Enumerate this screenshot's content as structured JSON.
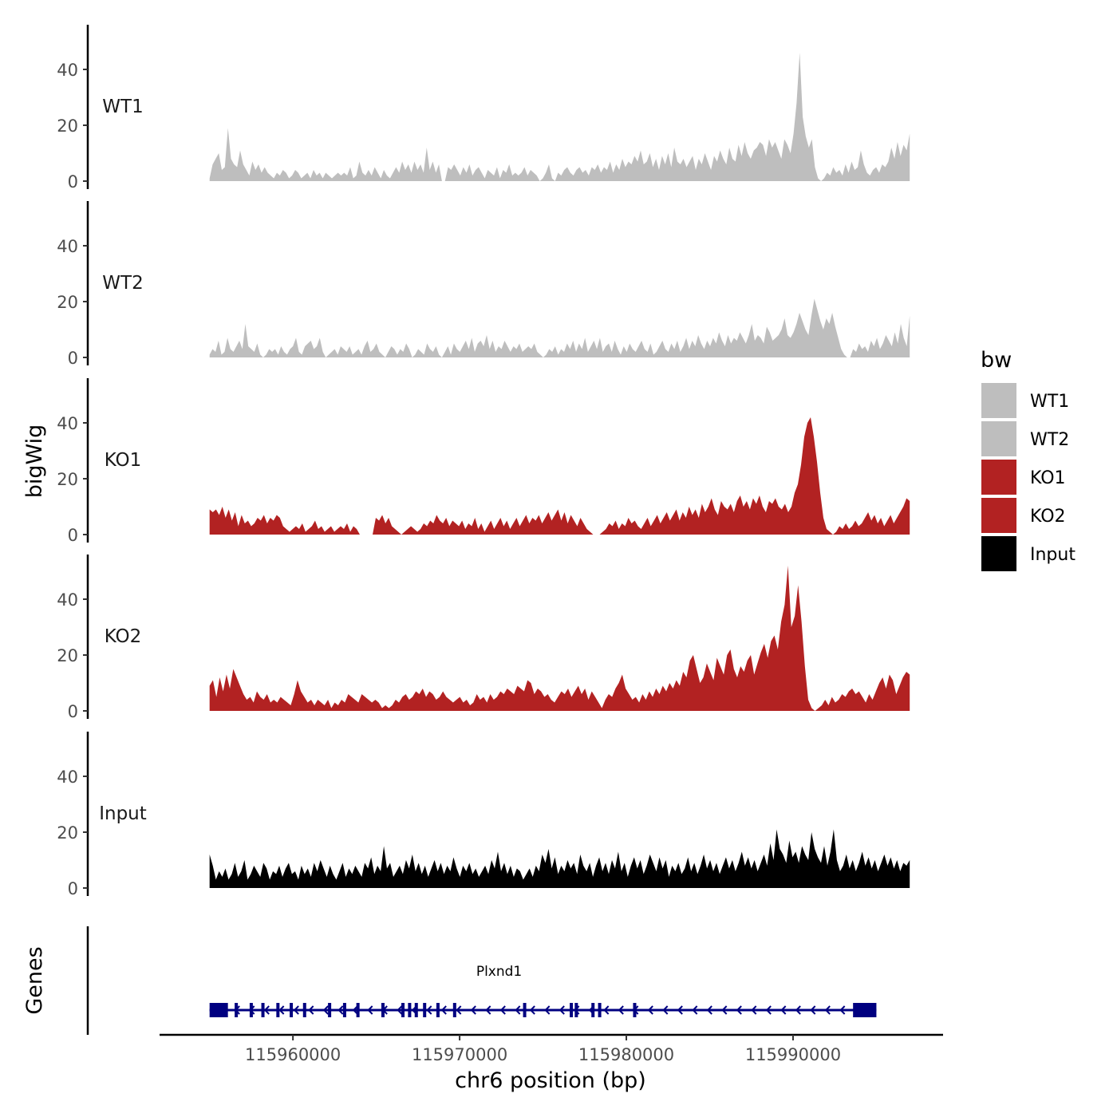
{
  "chart_data": {
    "type": "area",
    "y_axis_title": "bigWig",
    "x_axis_title": "chr6 position (bp)",
    "genes_axis_title": "Genes",
    "xlim": [
      115952000,
      115999000
    ],
    "data_x_range": [
      115955000,
      115997000
    ],
    "x_ticks": [
      115960000,
      115970000,
      115980000,
      115990000
    ],
    "x_tick_labels": [
      "115960000",
      "115970000",
      "115980000",
      "115990000"
    ],
    "ylim": [
      0,
      55
    ],
    "y_ticks": [
      0,
      20,
      40
    ],
    "y_tick_labels": [
      "0",
      "20",
      "40"
    ],
    "legend": {
      "title": "bw",
      "position": "right",
      "entries": [
        {
          "label": "WT1",
          "color": "#bebebe"
        },
        {
          "label": "WT2",
          "color": "#bebebe"
        },
        {
          "label": "KO1",
          "color": "#b22222"
        },
        {
          "label": "KO2",
          "color": "#b22222"
        },
        {
          "label": "Input",
          "color": "#000000"
        }
      ]
    },
    "series": [
      {
        "name": "WT1",
        "color": "#bebebe",
        "values": [
          1,
          6,
          8,
          10,
          4,
          5,
          19,
          8,
          6,
          5,
          11,
          6,
          4,
          2,
          7,
          4,
          6,
          3,
          5,
          3,
          2,
          1,
          3,
          2,
          4,
          3,
          1,
          2,
          4,
          3,
          1,
          2,
          3,
          1,
          4,
          2,
          3,
          1,
          3,
          2,
          1,
          2,
          3,
          2,
          3,
          2,
          5,
          1,
          2,
          7,
          3,
          2,
          4,
          2,
          5,
          3,
          1,
          4,
          2,
          1,
          3,
          5,
          3,
          7,
          4,
          6,
          3,
          7,
          4,
          6,
          3,
          12,
          4,
          7,
          3,
          6,
          0,
          0,
          5,
          4,
          6,
          4,
          2,
          5,
          3,
          6,
          2,
          4,
          5,
          3,
          1,
          4,
          3,
          2,
          5,
          1,
          4,
          3,
          6,
          2,
          3,
          2,
          3,
          5,
          2,
          4,
          3,
          2,
          0,
          1,
          3,
          6,
          1,
          0,
          3,
          2,
          4,
          5,
          3,
          2,
          4,
          5,
          3,
          4,
          2,
          5,
          4,
          6,
          3,
          5,
          4,
          7,
          3,
          6,
          4,
          8,
          5,
          7,
          6,
          9,
          7,
          11,
          6,
          7,
          10,
          5,
          8,
          4,
          9,
          6,
          10,
          5,
          12,
          7,
          6,
          8,
          5,
          7,
          9,
          4,
          8,
          6,
          10,
          7,
          4,
          9,
          7,
          11,
          8,
          6,
          12,
          8,
          7,
          13,
          9,
          14,
          10,
          8,
          11,
          12,
          14,
          13,
          9,
          15,
          12,
          14,
          11,
          8,
          15,
          13,
          10,
          17,
          28,
          46,
          23,
          16,
          12,
          15,
          5,
          1,
          0,
          1,
          3,
          2,
          5,
          3,
          4,
          2,
          6,
          3,
          7,
          4,
          5,
          11,
          6,
          3,
          2,
          4,
          5,
          3,
          6,
          5,
          7,
          12,
          8,
          14,
          9,
          13,
          11,
          17
        ]
      },
      {
        "name": "WT2",
        "color": "#bebebe",
        "values": [
          1,
          3,
          2,
          6,
          1,
          2,
          7,
          3,
          2,
          4,
          6,
          3,
          12,
          4,
          3,
          2,
          5,
          1,
          0,
          1,
          3,
          2,
          3,
          1,
          4,
          2,
          1,
          3,
          4,
          7,
          2,
          1,
          4,
          5,
          6,
          3,
          4,
          7,
          2,
          0,
          1,
          2,
          3,
          1,
          4,
          3,
          2,
          4,
          1,
          2,
          3,
          1,
          4,
          6,
          2,
          3,
          5,
          2,
          1,
          0,
          2,
          4,
          3,
          1,
          3,
          2,
          5,
          3,
          0,
          1,
          3,
          2,
          1,
          5,
          3,
          2,
          4,
          1,
          0,
          2,
          4,
          1,
          5,
          3,
          2,
          4,
          6,
          3,
          7,
          2,
          5,
          6,
          4,
          8,
          3,
          6,
          2,
          4,
          3,
          6,
          4,
          2,
          4,
          3,
          5,
          2,
          3,
          4,
          3,
          5,
          2,
          1,
          0,
          1,
          3,
          2,
          4,
          1,
          3,
          2,
          5,
          3,
          6,
          2,
          5,
          3,
          7,
          2,
          4,
          6,
          3,
          7,
          2,
          4,
          5,
          2,
          6,
          3,
          1,
          4,
          2,
          5,
          3,
          2,
          4,
          6,
          3,
          2,
          5,
          1,
          2,
          4,
          6,
          3,
          2,
          5,
          3,
          6,
          2,
          4,
          7,
          3,
          6,
          4,
          8,
          5,
          3,
          6,
          4,
          7,
          5,
          9,
          6,
          4,
          8,
          5,
          7,
          6,
          9,
          7,
          5,
          8,
          12,
          6,
          8,
          7,
          5,
          11,
          9,
          6,
          7,
          8,
          10,
          14,
          8,
          7,
          9,
          12,
          16,
          13,
          10,
          8,
          15,
          21,
          17,
          13,
          10,
          14,
          12,
          16,
          11,
          7,
          3,
          1,
          0,
          0,
          3,
          2,
          5,
          3,
          4,
          2,
          6,
          4,
          7,
          3,
          5,
          8,
          6,
          4,
          9,
          5,
          12,
          7,
          4,
          15
        ]
      },
      {
        "name": "KO1",
        "color": "#b22222",
        "values": [
          9,
          8,
          9,
          7,
          10,
          6,
          9,
          5,
          8,
          3,
          7,
          4,
          5,
          3,
          4,
          6,
          5,
          7,
          4,
          6,
          5,
          7,
          6,
          3,
          2,
          1,
          2,
          3,
          2,
          4,
          1,
          2,
          3,
          5,
          2,
          3,
          1,
          2,
          3,
          1,
          2,
          3,
          2,
          4,
          1,
          3,
          2,
          0,
          0,
          0,
          0,
          0,
          6,
          5,
          7,
          4,
          6,
          3,
          2,
          1,
          0,
          1,
          2,
          3,
          2,
          1,
          2,
          4,
          3,
          5,
          4,
          7,
          5,
          4,
          6,
          3,
          5,
          4,
          3,
          5,
          2,
          4,
          3,
          6,
          2,
          4,
          1,
          3,
          5,
          2,
          4,
          6,
          3,
          5,
          2,
          4,
          6,
          3,
          5,
          7,
          4,
          6,
          5,
          7,
          4,
          6,
          8,
          5,
          7,
          9,
          5,
          8,
          4,
          7,
          5,
          3,
          6,
          4,
          2,
          1,
          0,
          0,
          0,
          1,
          2,
          4,
          3,
          5,
          2,
          4,
          3,
          6,
          4,
          5,
          3,
          2,
          4,
          6,
          3,
          5,
          7,
          4,
          6,
          8,
          5,
          7,
          9,
          5,
          8,
          6,
          10,
          7,
          9,
          6,
          11,
          8,
          10,
          13,
          9,
          7,
          12,
          10,
          9,
          11,
          8,
          12,
          14,
          10,
          12,
          9,
          13,
          11,
          14,
          10,
          8,
          12,
          11,
          13,
          10,
          9,
          11,
          8,
          10,
          15,
          18,
          25,
          35,
          40,
          42,
          35,
          26,
          15,
          6,
          2,
          1,
          0,
          1,
          3,
          2,
          4,
          2,
          3,
          5,
          3,
          4,
          6,
          8,
          5,
          7,
          4,
          6,
          3,
          5,
          7,
          4,
          6,
          8,
          10,
          13,
          12
        ]
      },
      {
        "name": "KO2",
        "color": "#b22222",
        "values": [
          9,
          11,
          5,
          12,
          7,
          13,
          8,
          15,
          12,
          9,
          6,
          4,
          5,
          3,
          7,
          5,
          4,
          6,
          3,
          4,
          3,
          5,
          4,
          3,
          2,
          6,
          11,
          7,
          5,
          3,
          4,
          2,
          4,
          3,
          2,
          4,
          1,
          3,
          2,
          4,
          3,
          6,
          5,
          4,
          3,
          6,
          5,
          4,
          3,
          4,
          3,
          1,
          2,
          1,
          2,
          4,
          3,
          5,
          6,
          4,
          5,
          7,
          6,
          8,
          5,
          7,
          6,
          4,
          5,
          7,
          5,
          4,
          3,
          4,
          5,
          3,
          4,
          2,
          3,
          6,
          4,
          5,
          3,
          6,
          4,
          5,
          7,
          6,
          8,
          7,
          6,
          9,
          8,
          7,
          11,
          10,
          6,
          8,
          7,
          5,
          6,
          4,
          3,
          5,
          7,
          6,
          8,
          5,
          7,
          9,
          6,
          8,
          4,
          7,
          5,
          3,
          1,
          4,
          6,
          5,
          8,
          10,
          13,
          8,
          6,
          4,
          5,
          3,
          6,
          4,
          7,
          5,
          8,
          6,
          9,
          7,
          10,
          8,
          11,
          9,
          14,
          12,
          18,
          20,
          15,
          10,
          12,
          17,
          14,
          11,
          19,
          16,
          13,
          20,
          22,
          15,
          12,
          16,
          14,
          18,
          20,
          13,
          17,
          21,
          24,
          19,
          25,
          27,
          22,
          32,
          38,
          52,
          30,
          34,
          45,
          32,
          16,
          4,
          1,
          0,
          1,
          2,
          4,
          2,
          5,
          3,
          4,
          6,
          5,
          7,
          8,
          6,
          7,
          5,
          3,
          6,
          4,
          7,
          10,
          12,
          8,
          13,
          11,
          6,
          9,
          12,
          14,
          13
        ]
      },
      {
        "name": "Input",
        "color": "#000000",
        "values": [
          12,
          8,
          3,
          6,
          4,
          7,
          3,
          5,
          9,
          4,
          6,
          10,
          3,
          5,
          8,
          6,
          4,
          9,
          7,
          3,
          6,
          5,
          8,
          4,
          7,
          9,
          5,
          6,
          3,
          8,
          5,
          7,
          4,
          9,
          6,
          10,
          7,
          4,
          8,
          5,
          3,
          6,
          9,
          4,
          7,
          5,
          8,
          6,
          4,
          9,
          7,
          11,
          5,
          8,
          6,
          15,
          7,
          9,
          4,
          6,
          8,
          5,
          10,
          7,
          12,
          6,
          9,
          5,
          8,
          4,
          7,
          10,
          6,
          9,
          5,
          8,
          6,
          11,
          7,
          4,
          8,
          6,
          9,
          5,
          7,
          4,
          6,
          8,
          5,
          10,
          7,
          13,
          6,
          9,
          5,
          8,
          4,
          7,
          6,
          3,
          5,
          7,
          4,
          8,
          6,
          12,
          9,
          14,
          7,
          11,
          5,
          8,
          6,
          10,
          7,
          9,
          5,
          12,
          8,
          6,
          9,
          4,
          8,
          11,
          6,
          9,
          5,
          10,
          7,
          13,
          6,
          9,
          4,
          8,
          11,
          7,
          10,
          5,
          8,
          12,
          9,
          6,
          11,
          7,
          10,
          4,
          8,
          6,
          9,
          5,
          7,
          11,
          6,
          9,
          5,
          8,
          12,
          7,
          10,
          6,
          9,
          5,
          8,
          11,
          7,
          10,
          6,
          9,
          13,
          8,
          11,
          7,
          10,
          6,
          9,
          12,
          8,
          16,
          10,
          21,
          14,
          12,
          9,
          17,
          11,
          13,
          9,
          15,
          12,
          10,
          20,
          14,
          11,
          9,
          15,
          8,
          13,
          21,
          10,
          6,
          8,
          12,
          7,
          10,
          6,
          9,
          13,
          8,
          11,
          7,
          10,
          6,
          9,
          12,
          8,
          11,
          7,
          10,
          6,
          9,
          8,
          10
        ]
      }
    ],
    "genes": {
      "name": "Plxnd1",
      "strand": "-",
      "start": 115955000,
      "end": 115995000,
      "exons": [
        115955700,
        115956600,
        115957500,
        115958200,
        115959100,
        115959900,
        115960700,
        115962200,
        115963100,
        115963900,
        115965400,
        115966600,
        115967000,
        115967400,
        115967900,
        115968700,
        115969700,
        115973900,
        115976700,
        115977000,
        115978000,
        115978400,
        115980500
      ]
    }
  }
}
